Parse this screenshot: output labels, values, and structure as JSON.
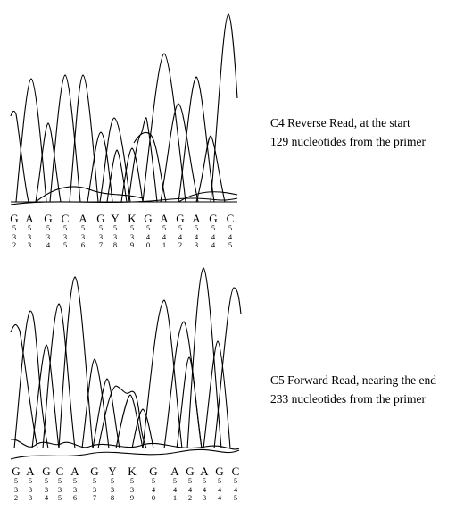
{
  "panels": [
    {
      "caption": {
        "line1": "C4 Reverse Read, at the start",
        "line2": "129 nucleotides from the primer"
      },
      "bases": [
        {
          "letter": "G",
          "pos": [
            "5",
            "3",
            "2"
          ]
        },
        {
          "letter": "A",
          "pos": [
            "5",
            "3",
            "3"
          ]
        },
        {
          "letter": "G",
          "pos": [
            "5",
            "3",
            "4"
          ]
        },
        {
          "letter": "C",
          "pos": [
            "5",
            "3",
            "5"
          ]
        },
        {
          "letter": "A",
          "pos": [
            "5",
            "3",
            "6"
          ]
        },
        {
          "letter": "G",
          "pos": [
            "5",
            "3",
            "7"
          ]
        },
        {
          "letter": "Y",
          "pos": [
            "5",
            "3",
            "8"
          ]
        },
        {
          "letter": "K",
          "pos": [
            "5",
            "3",
            "9"
          ]
        },
        {
          "letter": "G",
          "pos": [
            "5",
            "4",
            "0"
          ]
        },
        {
          "letter": "A",
          "pos": [
            "5",
            "4",
            "1"
          ]
        },
        {
          "letter": "G",
          "pos": [
            "5",
            "4",
            "2"
          ]
        },
        {
          "letter": "A",
          "pos": [
            "5",
            "4",
            "3"
          ]
        },
        {
          "letter": "G",
          "pos": [
            "5",
            "4",
            "4"
          ]
        },
        {
          "letter": "C",
          "pos": [
            "5",
            "4",
            "5"
          ]
        }
      ]
    },
    {
      "caption": {
        "line1": "C5 Forward Read, nearing the end",
        "line2": "233 nucleotides from the primer"
      },
      "bases": [
        {
          "letter": "G",
          "pos": [
            "5",
            "3",
            "2"
          ]
        },
        {
          "letter": "A",
          "pos": [
            "5",
            "3",
            "3"
          ]
        },
        {
          "letter": "G",
          "pos": [
            "5",
            "3",
            "4"
          ]
        },
        {
          "letter": "C",
          "pos": [
            "5",
            "3",
            "5"
          ]
        },
        {
          "letter": "A",
          "pos": [
            "5",
            "3",
            "6"
          ]
        },
        {
          "letter": "G",
          "pos": [
            "5",
            "3",
            "7"
          ]
        },
        {
          "letter": "Y",
          "pos": [
            "5",
            "3",
            "8"
          ]
        },
        {
          "letter": "K",
          "pos": [
            "5",
            "3",
            "9"
          ]
        },
        {
          "letter": "G",
          "pos": [
            "5",
            "4",
            "0"
          ]
        },
        {
          "letter": "A",
          "pos": [
            "5",
            "4",
            "1"
          ]
        },
        {
          "letter": "G",
          "pos": [
            "5",
            "4",
            "2"
          ]
        },
        {
          "letter": "A",
          "pos": [
            "5",
            "4",
            "3"
          ]
        },
        {
          "letter": "G",
          "pos": [
            "5",
            "4",
            "4"
          ]
        },
        {
          "letter": "C",
          "pos": [
            "5",
            "4",
            "5"
          ]
        }
      ]
    }
  ]
}
